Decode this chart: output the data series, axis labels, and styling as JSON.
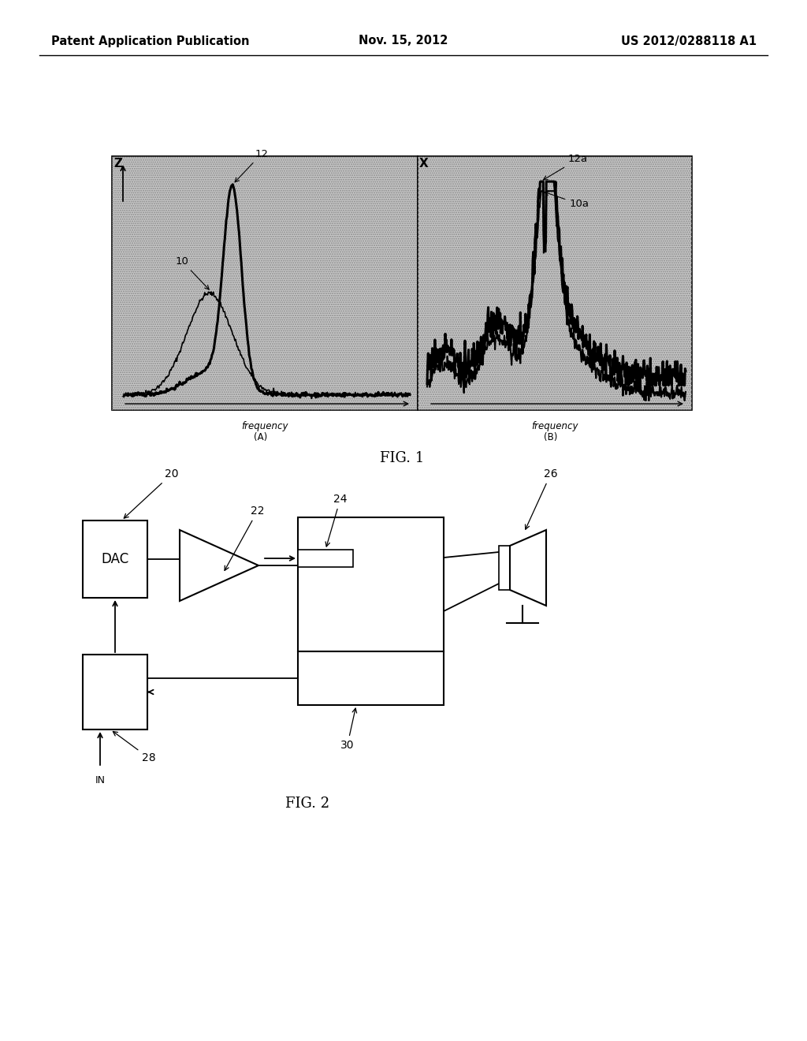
{
  "header_left": "Patent Application Publication",
  "header_center": "Nov. 15, 2012",
  "header_right": "US 2012/0288118 A1",
  "fig1_title": "FIG. 1",
  "fig2_title": "FIG. 2",
  "background_color": "#ffffff",
  "graph_bg": "#c8c8c8",
  "labels": {
    "Z": "Z",
    "X": "X",
    "frequency_A": "frequency",
    "frequency_B": "frequency",
    "panel_A": "(A)",
    "panel_B": "(B)",
    "label_10": "10",
    "label_12": "12",
    "label_10a": "10a",
    "label_12a": "12a",
    "dac": "DAC",
    "in_label": "IN",
    "num_20": "20",
    "num_22": "22",
    "num_24": "24",
    "num_26": "26",
    "num_28": "28",
    "num_30": "30"
  }
}
